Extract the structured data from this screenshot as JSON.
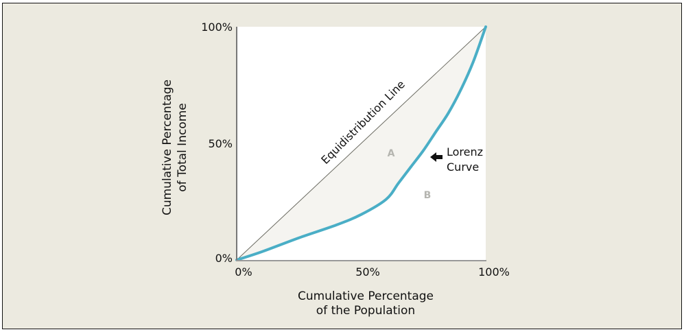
{
  "chart_data": {
    "type": "line",
    "title": "",
    "xlabel": [
      "Cumulative Percentage",
      "of the Population"
    ],
    "ylabel": [
      "Cumulative Percentage",
      "of Total Income"
    ],
    "xlim": [
      0,
      100
    ],
    "ylim": [
      0,
      100
    ],
    "x_ticks": [
      "0%",
      "50%",
      "100%"
    ],
    "y_ticks": [
      "0%",
      "50%",
      "100%"
    ],
    "grid": false,
    "series": [
      {
        "name": "Equidistribution Line",
        "x": [
          0,
          100
        ],
        "y": [
          0,
          100
        ],
        "color": "#6b6b62"
      },
      {
        "name": "Lorenz Curve",
        "x": [
          0,
          10,
          25,
          40,
          50,
          60,
          65,
          70,
          75,
          80,
          85,
          90,
          95,
          100
        ],
        "y": [
          0,
          3.5,
          9.5,
          15,
          19.5,
          26,
          33,
          40,
          47,
          55,
          63,
          73,
          85,
          100
        ],
        "color": "#4aaec6"
      }
    ],
    "annotations": {
      "equidistribution": "Equidistribution Line",
      "lorenz": [
        "Lorenz",
        "Curve"
      ],
      "area_a": "A",
      "area_b": "B"
    },
    "colors": {
      "background": "#eceae0",
      "plot": "#ffffff",
      "area_fill": "#f5f4f0",
      "area_label": "#b5b5b0"
    }
  }
}
